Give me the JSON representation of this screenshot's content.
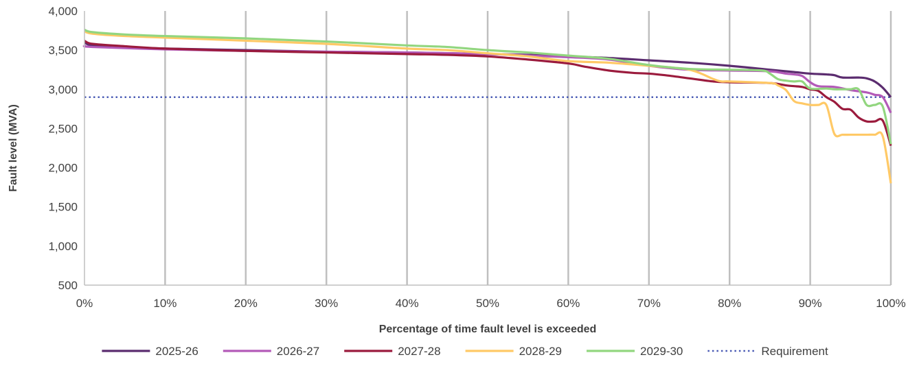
{
  "chart_data": {
    "type": "line",
    "title": "",
    "xlabel": "Percentage of time fault level is exceeded",
    "ylabel": "Fault level (MVA)",
    "xlim": [
      0,
      100
    ],
    "ylim": [
      500,
      4000
    ],
    "x_ticks": [
      0,
      10,
      20,
      30,
      40,
      50,
      60,
      70,
      80,
      90,
      100
    ],
    "x_tick_labels": [
      "0%",
      "10%",
      "20%",
      "30%",
      "40%",
      "50%",
      "60%",
      "70%",
      "80%",
      "90%",
      "100%"
    ],
    "y_ticks": [
      500,
      1000,
      1500,
      2000,
      2500,
      3000,
      3500,
      4000
    ],
    "y_tick_labels": [
      "500",
      "1,000",
      "1,500",
      "2,000",
      "2,500",
      "3,000",
      "3,500",
      "4,000"
    ],
    "grid": {
      "vertical": true,
      "horizontal": false
    },
    "legend_position": "bottom",
    "series": [
      {
        "name": "2025-26",
        "color": "#5b2c6f",
        "style": "solid",
        "points": [
          [
            0,
            3600
          ],
          [
            1,
            3560
          ],
          [
            5,
            3540
          ],
          [
            10,
            3520
          ],
          [
            20,
            3500
          ],
          [
            30,
            3480
          ],
          [
            40,
            3470
          ],
          [
            50,
            3450
          ],
          [
            55,
            3440
          ],
          [
            60,
            3420
          ],
          [
            65,
            3400
          ],
          [
            70,
            3370
          ],
          [
            75,
            3340
          ],
          [
            80,
            3300
          ],
          [
            85,
            3250
          ],
          [
            88,
            3220
          ],
          [
            90,
            3200
          ],
          [
            92,
            3190
          ],
          [
            93,
            3180
          ],
          [
            94,
            3150
          ],
          [
            96,
            3150
          ],
          [
            97,
            3140
          ],
          [
            98,
            3100
          ],
          [
            99,
            3020
          ],
          [
            100,
            2900
          ]
        ]
      },
      {
        "name": "2026-27",
        "color": "#b35ab8",
        "style": "solid",
        "points": [
          [
            0,
            3560
          ],
          [
            1,
            3540
          ],
          [
            10,
            3510
          ],
          [
            20,
            3490
          ],
          [
            30,
            3480
          ],
          [
            40,
            3470
          ],
          [
            50,
            3450
          ],
          [
            55,
            3430
          ],
          [
            60,
            3410
          ],
          [
            65,
            3380
          ],
          [
            70,
            3300
          ],
          [
            75,
            3250
          ],
          [
            80,
            3240
          ],
          [
            85,
            3230
          ],
          [
            87,
            3200
          ],
          [
            88,
            3190
          ],
          [
            89,
            3170
          ],
          [
            90,
            3090
          ],
          [
            91,
            3040
          ],
          [
            93,
            3030
          ],
          [
            95,
            2990
          ],
          [
            97,
            2960
          ],
          [
            98,
            2930
          ],
          [
            99,
            2900
          ],
          [
            100,
            2700
          ]
        ]
      },
      {
        "name": "2027-28",
        "color": "#9b1b3d",
        "style": "solid",
        "points": [
          [
            0,
            3620
          ],
          [
            1,
            3580
          ],
          [
            5,
            3550
          ],
          [
            10,
            3520
          ],
          [
            20,
            3490
          ],
          [
            30,
            3470
          ],
          [
            40,
            3450
          ],
          [
            45,
            3440
          ],
          [
            50,
            3420
          ],
          [
            55,
            3380
          ],
          [
            60,
            3330
          ],
          [
            62,
            3290
          ],
          [
            65,
            3240
          ],
          [
            68,
            3210
          ],
          [
            70,
            3200
          ],
          [
            72,
            3180
          ],
          [
            75,
            3140
          ],
          [
            78,
            3100
          ],
          [
            80,
            3090
          ],
          [
            85,
            3080
          ],
          [
            87,
            3050
          ],
          [
            88,
            3040
          ],
          [
            89,
            3030
          ],
          [
            90,
            3000
          ],
          [
            91,
            2980
          ],
          [
            92,
            2900
          ],
          [
            93,
            2840
          ],
          [
            94,
            2750
          ],
          [
            95,
            2740
          ],
          [
            96,
            2640
          ],
          [
            97,
            2590
          ],
          [
            98,
            2590
          ],
          [
            99,
            2600
          ],
          [
            100,
            2280
          ]
        ]
      },
      {
        "name": "2028-29",
        "color": "#ffc966",
        "style": "solid",
        "points": [
          [
            0,
            3740
          ],
          [
            1,
            3710
          ],
          [
            5,
            3680
          ],
          [
            10,
            3660
          ],
          [
            20,
            3620
          ],
          [
            30,
            3580
          ],
          [
            40,
            3520
          ],
          [
            45,
            3500
          ],
          [
            50,
            3460
          ],
          [
            55,
            3420
          ],
          [
            60,
            3360
          ],
          [
            65,
            3340
          ],
          [
            70,
            3300
          ],
          [
            75,
            3250
          ],
          [
            78,
            3130
          ],
          [
            79,
            3100
          ],
          [
            80,
            3100
          ],
          [
            85,
            3080
          ],
          [
            86,
            3050
          ],
          [
            87,
            2990
          ],
          [
            88,
            2850
          ],
          [
            89,
            2820
          ],
          [
            90,
            2800
          ],
          [
            91,
            2800
          ],
          [
            92,
            2800
          ],
          [
            93,
            2430
          ],
          [
            94,
            2420
          ],
          [
            95,
            2420
          ],
          [
            96,
            2420
          ],
          [
            97,
            2420
          ],
          [
            98,
            2420
          ],
          [
            99,
            2400
          ],
          [
            100,
            1800
          ]
        ]
      },
      {
        "name": "2029-30",
        "color": "#92d67f",
        "style": "solid",
        "points": [
          [
            0,
            3760
          ],
          [
            1,
            3730
          ],
          [
            5,
            3700
          ],
          [
            10,
            3680
          ],
          [
            20,
            3650
          ],
          [
            30,
            3610
          ],
          [
            40,
            3560
          ],
          [
            45,
            3540
          ],
          [
            50,
            3500
          ],
          [
            55,
            3470
          ],
          [
            60,
            3430
          ],
          [
            65,
            3390
          ],
          [
            70,
            3310
          ],
          [
            75,
            3260
          ],
          [
            80,
            3250
          ],
          [
            84,
            3240
          ],
          [
            85,
            3200
          ],
          [
            86,
            3130
          ],
          [
            87,
            3110
          ],
          [
            88,
            3100
          ],
          [
            89,
            3100
          ],
          [
            90,
            3010
          ],
          [
            92,
            3010
          ],
          [
            93,
            3000
          ],
          [
            94,
            3000
          ],
          [
            95,
            3000
          ],
          [
            96,
            3000
          ],
          [
            97,
            2800
          ],
          [
            98,
            2800
          ],
          [
            99,
            2780
          ],
          [
            100,
            2300
          ]
        ]
      },
      {
        "name": "Requirement",
        "color": "#4a5bb5",
        "style": "dotted",
        "points": [
          [
            0,
            2900
          ],
          [
            100,
            2900
          ]
        ]
      }
    ]
  }
}
